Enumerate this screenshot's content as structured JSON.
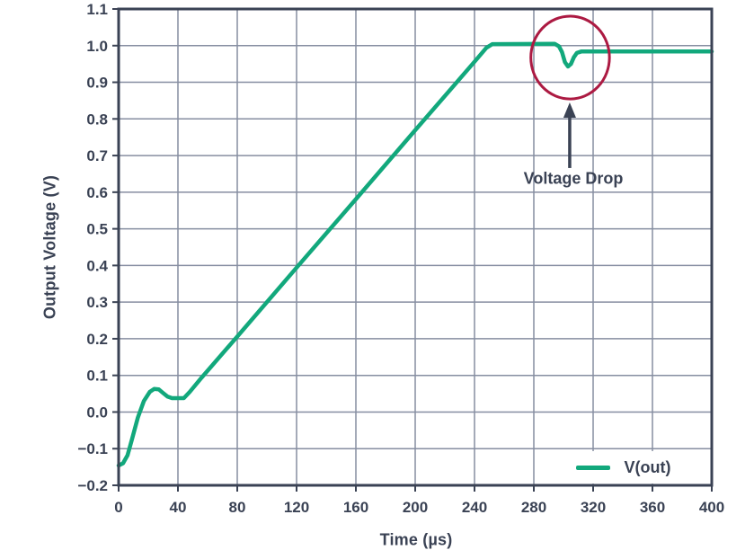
{
  "chart_data": {
    "type": "line",
    "title": "",
    "xlabel": "Time (µs)",
    "ylabel": "Output Voltage (V)",
    "xlim": [
      0,
      400
    ],
    "ylim": [
      -0.2,
      1.1
    ],
    "grid": true,
    "x_ticks": [
      0,
      40,
      80,
      120,
      160,
      200,
      240,
      280,
      320,
      360,
      400
    ],
    "x_tick_labels": [
      "0",
      "40",
      "80",
      "120",
      "160",
      "200",
      "240",
      "280",
      "320",
      "360",
      "400"
    ],
    "y_ticks": [
      -0.2,
      -0.1,
      0.0,
      0.1,
      0.2,
      0.3,
      0.4,
      0.5,
      0.6,
      0.7,
      0.8,
      0.9,
      1.0,
      1.1
    ],
    "y_tick_labels": [
      "−0.2",
      "−0.1",
      "0.0",
      "0.1",
      "0.2",
      "0.3",
      "0.4",
      "0.5",
      "0.6",
      "0.7",
      "0.8",
      "0.9",
      "1.0",
      "1.1"
    ],
    "legend_position": "bottom-right",
    "series": [
      {
        "name": "V(out)",
        "color": "#12a87c",
        "points": [
          [
            0,
            -0.146
          ],
          [
            3,
            -0.14
          ],
          [
            6,
            -0.118
          ],
          [
            9,
            -0.075
          ],
          [
            13,
            -0.015
          ],
          [
            17,
            0.03
          ],
          [
            21,
            0.055
          ],
          [
            24,
            0.063
          ],
          [
            27,
            0.062
          ],
          [
            30,
            0.052
          ],
          [
            33,
            0.042
          ],
          [
            36,
            0.038
          ],
          [
            44,
            0.038
          ],
          [
            48,
            0.055
          ],
          [
            56,
            0.094
          ],
          [
            80,
            0.206
          ],
          [
            120,
            0.394
          ],
          [
            160,
            0.581
          ],
          [
            200,
            0.769
          ],
          [
            240,
            0.956
          ],
          [
            248,
            0.994
          ],
          [
            252,
            1.004
          ],
          [
            294,
            1.005
          ],
          [
            297,
            0.998
          ],
          [
            299,
            0.982
          ],
          [
            301,
            0.955
          ],
          [
            303,
            0.943
          ],
          [
            305,
            0.95
          ],
          [
            307,
            0.968
          ],
          [
            309,
            0.98
          ],
          [
            312,
            0.984
          ],
          [
            340,
            0.984
          ],
          [
            400,
            0.984
          ]
        ]
      }
    ],
    "annotations": {
      "circle": {
        "cx_t": 304.5,
        "cy_v": 0.9675,
        "rx_t": 26.5,
        "ry_v": 0.113,
        "color": "#ac1a42"
      },
      "arrow": {
        "x_t": 304.2,
        "tip_v": 0.845,
        "tail_v": 0.666,
        "color": "#3a4254"
      },
      "label": {
        "text": "Voltage Drop"
      }
    }
  },
  "colors": {
    "frame": "#3a4254",
    "grid": "#868ea1",
    "text": "#3a4254",
    "background": "#ffffff"
  }
}
